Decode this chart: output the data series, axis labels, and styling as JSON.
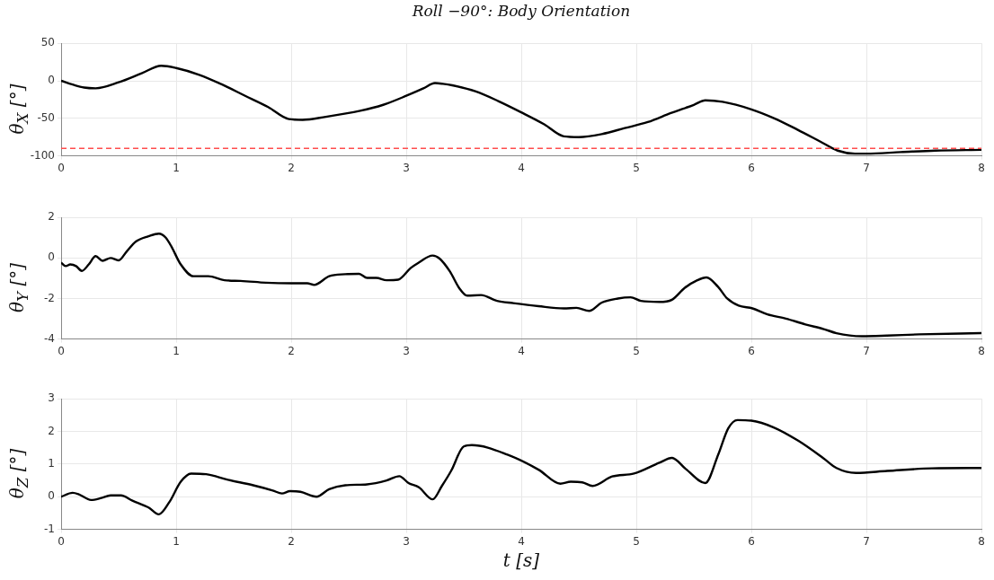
{
  "chart_data": [
    {
      "type": "line",
      "title": "Roll −90°: Body Orientation",
      "ylabel": "θ$_{X}$ [°]",
      "xlim": [
        0,
        8
      ],
      "xticks": [
        0,
        1,
        2,
        3,
        4,
        5,
        6,
        7,
        8
      ],
      "ylim": [
        -100,
        50
      ],
      "yticks": [
        -100,
        -50,
        0,
        50
      ],
      "grid": true,
      "x": [
        0,
        0.1,
        0.2,
        0.3,
        0.5,
        0.7,
        0.87,
        1.0,
        1.2,
        1.4,
        1.6,
        1.8,
        1.98,
        2.1,
        2.3,
        2.6,
        2.8,
        3.0,
        3.15,
        3.25,
        3.32,
        3.4,
        3.6,
        3.8,
        4.0,
        4.2,
        4.37,
        4.5,
        4.7,
        4.9,
        5.1,
        5.3,
        5.5,
        5.6,
        5.75,
        6.0,
        6.2,
        6.4,
        6.6,
        6.75,
        6.9,
        7.0,
        7.3,
        7.6,
        8.0
      ],
      "series": [
        {
          "color": "#000000",
          "values": [
            0,
            -5,
            -9,
            -10,
            -2,
            10,
            20,
            17,
            8,
            -5,
            -20,
            -35,
            -51,
            -52,
            -48,
            -40,
            -32,
            -20,
            -10,
            -3,
            -4,
            -6,
            -14,
            -27,
            -42,
            -58,
            -74,
            -75,
            -71,
            -63,
            -55,
            -43,
            -32,
            -26,
            -28,
            -38,
            -50,
            -65,
            -81,
            -93,
            -97,
            -97,
            -95,
            -93,
            -92
          ]
        }
      ],
      "ref_lines": [
        {
          "axis": "y",
          "value": -90,
          "color": "#ff4d4d",
          "line_style": "dashed"
        }
      ]
    },
    {
      "type": "line",
      "ylabel": "θ$_{Y}$ [°]",
      "xlim": [
        0,
        8
      ],
      "xticks": [
        0,
        1,
        2,
        3,
        4,
        5,
        6,
        7,
        8
      ],
      "ylim": [
        -4,
        2
      ],
      "yticks": [
        -4,
        -2,
        0,
        2
      ],
      "grid": true,
      "x": [
        0,
        0.04,
        0.08,
        0.13,
        0.18,
        0.24,
        0.3,
        0.36,
        0.43,
        0.5,
        0.57,
        0.65,
        0.76,
        0.85,
        0.91,
        0.96,
        1.04,
        1.15,
        1.28,
        1.42,
        1.56,
        1.78,
        2.0,
        2.14,
        2.2,
        2.33,
        2.47,
        2.59,
        2.66,
        2.74,
        2.83,
        2.93,
        3.04,
        3.1,
        3.23,
        3.29,
        3.38,
        3.46,
        3.53,
        3.65,
        3.79,
        3.93,
        4.15,
        4.37,
        4.48,
        4.59,
        4.7,
        4.84,
        4.95,
        5.04,
        5.2,
        5.31,
        5.42,
        5.53,
        5.61,
        5.71,
        5.79,
        5.89,
        6.01,
        6.14,
        6.3,
        6.47,
        6.63,
        6.74,
        6.96,
        7.18,
        7.46,
        8.0
      ],
      "series": [
        {
          "color": "#000000",
          "values": [
            -0.23,
            -0.4,
            -0.32,
            -0.4,
            -0.64,
            -0.32,
            0.09,
            -0.14,
            0,
            -0.12,
            0.32,
            0.81,
            1.07,
            1.2,
            1.0,
            0.55,
            -0.32,
            -0.9,
            -0.9,
            -1.1,
            -1.13,
            -1.22,
            -1.25,
            -1.25,
            -1.33,
            -0.9,
            -0.8,
            -0.78,
            -0.98,
            -0.98,
            -1.1,
            -1.07,
            -0.49,
            -0.26,
            0.12,
            -0.03,
            -0.67,
            -1.48,
            -1.86,
            -1.83,
            -2.12,
            -2.23,
            -2.38,
            -2.49,
            -2.46,
            -2.61,
            -2.2,
            -2.0,
            -1.94,
            -2.12,
            -2.17,
            -2.06,
            -1.48,
            -1.1,
            -0.96,
            -1.42,
            -2.0,
            -2.35,
            -2.49,
            -2.78,
            -2.99,
            -3.28,
            -3.51,
            -3.71,
            -3.86,
            -3.83,
            -3.77,
            -3.71
          ]
        }
      ]
    },
    {
      "type": "line",
      "ylabel": "θ$_{Z}$ [°]",
      "xlabel": "t [s]",
      "xlim": [
        0,
        8
      ],
      "xticks": [
        0,
        1,
        2,
        3,
        4,
        5,
        6,
        7,
        8
      ],
      "ylim": [
        -1,
        3
      ],
      "yticks": [
        -1,
        0,
        1,
        2,
        3
      ],
      "grid": true,
      "x": [
        0,
        0.1,
        0.15,
        0.26,
        0.35,
        0.43,
        0.52,
        0.62,
        0.76,
        0.85,
        0.94,
        1.04,
        1.13,
        1.26,
        1.45,
        1.67,
        1.84,
        1.92,
        1.99,
        2.08,
        2.22,
        2.33,
        2.47,
        2.66,
        2.83,
        2.94,
        3.02,
        3.11,
        3.23,
        3.31,
        3.39,
        3.5,
        3.57,
        3.88,
        4.15,
        4.34,
        4.43,
        4.53,
        4.62,
        4.79,
        4.98,
        5.2,
        5.31,
        5.43,
        5.6,
        5.71,
        5.8,
        5.88,
        6.0,
        6.19,
        6.41,
        6.63,
        6.74,
        6.91,
        7.18,
        7.57,
        8.0
      ],
      "series": [
        {
          "color": "#000000",
          "values": [
            0,
            0.12,
            0.08,
            -0.1,
            -0.04,
            0.04,
            0.04,
            -0.12,
            -0.33,
            -0.54,
            -0.17,
            0.46,
            0.71,
            0.69,
            0.52,
            0.35,
            0.19,
            0.1,
            0.17,
            0.15,
            0,
            0.23,
            0.35,
            0.38,
            0.5,
            0.63,
            0.42,
            0.29,
            -0.08,
            0.33,
            0.79,
            1.54,
            1.58,
            1.29,
            0.83,
            0.4,
            0.46,
            0.44,
            0.33,
            0.62,
            0.71,
            1.04,
            1.19,
            0.85,
            0.42,
            1.27,
            2.1,
            2.35,
            2.33,
            2.13,
            1.71,
            1.17,
            0.88,
            0.73,
            0.79,
            0.87,
            0.88
          ]
        }
      ]
    }
  ]
}
